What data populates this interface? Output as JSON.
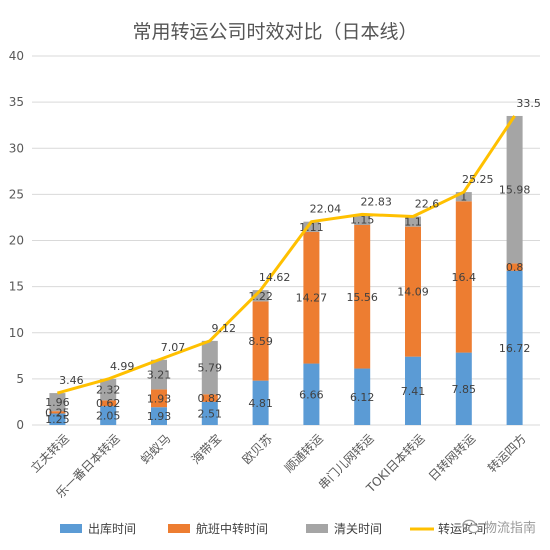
{
  "chart_data": {
    "type": "bar",
    "stacked": true,
    "title": "常用转运公司时效对比（日本线）",
    "categories": [
      "立夫转运",
      "乐一番日本转运",
      "蚂蚁马",
      "海带宝",
      "欧贝苏",
      "顺通转运",
      "串门儿网转运",
      "TOKI日本转运",
      "日转网转运",
      "转运四方"
    ],
    "series": [
      {
        "name": "出库时间",
        "color": "#5b9bd5",
        "values": [
          1.25,
          2.05,
          1.93,
          2.51,
          4.81,
          6.66,
          6.12,
          7.41,
          7.85,
          16.72
        ]
      },
      {
        "name": "航班中转时间",
        "color": "#ed7d31",
        "values": [
          0.25,
          0.62,
          1.93,
          0.82,
          8.59,
          14.27,
          15.56,
          14.09,
          16.4,
          0.8
        ]
      },
      {
        "name": "清关时间",
        "color": "#a5a5a5",
        "values": [
          1.96,
          2.32,
          3.21,
          5.79,
          1.22,
          1.11,
          1.15,
          1.1,
          1,
          15.98
        ]
      }
    ],
    "line": {
      "name": "转运时间",
      "color": "#ffc000",
      "values": [
        3.46,
        4.99,
        7.07,
        9.12,
        14.62,
        22.04,
        22.83,
        22.6,
        25.25,
        33.5
      ]
    },
    "ylim": [
      0,
      40
    ],
    "yticks": [
      0,
      5,
      10,
      15,
      20,
      25,
      30,
      35,
      40
    ],
    "grid": true,
    "legend_position": "bottom"
  },
  "watermark": {
    "text": "物流指南",
    "icon": "wechat-icon"
  }
}
